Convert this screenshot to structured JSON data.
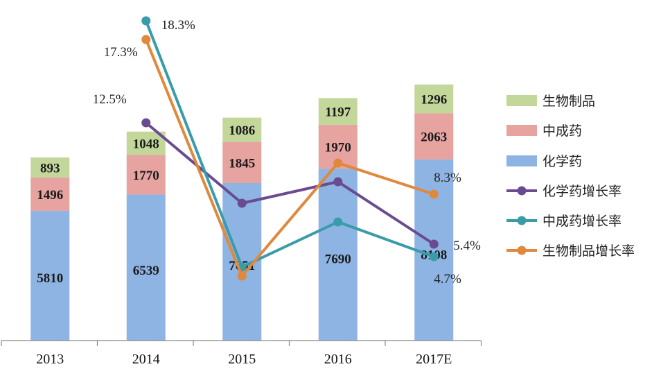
{
  "chart_data": {
    "type": "bar",
    "stacked": true,
    "categories": [
      "2013",
      "2014",
      "2015",
      "2016",
      "2017E"
    ],
    "series": [
      {
        "name": "化学药",
        "values": [
          5810,
          6539,
          7051,
          7690,
          8108
        ],
        "color": "#8eb4e3"
      },
      {
        "name": "中成药",
        "values": [
          1496,
          1770,
          1845,
          1970,
          2063
        ],
        "color": "#e6a3a0"
      },
      {
        "name": "生物制品",
        "values": [
          893,
          1048,
          1086,
          1197,
          1296
        ],
        "color": "#c4d79b"
      }
    ],
    "line_series": [
      {
        "name": "化学药增长率",
        "color": "#6a4b8f",
        "values": [
          null,
          12.5,
          7.8,
          9.1,
          5.4
        ],
        "labels": [
          "",
          "12.5%",
          "",
          "",
          "5.4%"
        ]
      },
      {
        "name": "中成药增长率",
        "color": "#3a9bab",
        "values": [
          null,
          18.3,
          4.2,
          6.8,
          4.7
        ],
        "labels": [
          "",
          "18.3%",
          "",
          "",
          "4.7%"
        ]
      },
      {
        "name": "生物制品增长率",
        "color": "#e0883c",
        "values": [
          null,
          17.3,
          3.6,
          10.2,
          8.3
        ],
        "labels": [
          "",
          "17.3%",
          "",
          "",
          "8.3%"
        ]
      }
    ],
    "legend_position": "right",
    "grid": false,
    "ylim": [
      0,
      13000
    ]
  }
}
